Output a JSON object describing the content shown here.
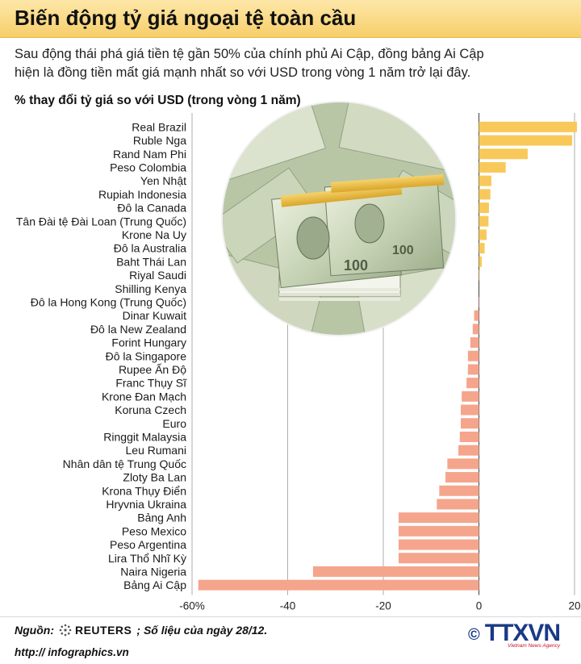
{
  "header": {
    "title": "Biến động tỷ giá ngoại tệ toàn cầu"
  },
  "intro": {
    "line1": "Sau động thái phá giá tiền tệ gần 50% của chính phủ Ai Cập, đồng bảng Ai Cập",
    "line2": "hiện là đồng tiền mất giá mạnh nhất so với USD trong vòng 1 năm trở lại đây."
  },
  "chart_data": {
    "type": "bar",
    "orientation": "horizontal",
    "title": "% thay đổi tỷ giá so với USD (trong vòng 1 năm)",
    "xlim": [
      -60,
      20
    ],
    "x_ticks": [
      "-60%",
      "-40",
      "-20",
      "0",
      "20"
    ],
    "x_tick_values": [
      -60,
      -40,
      -20,
      0,
      20
    ],
    "grid": true,
    "colors": {
      "positive": "#f8c95a",
      "negative": "#f5a58c"
    },
    "categories": [
      "Real Brazil",
      "Ruble Nga",
      "Rand Nam Phi",
      "Peso Colombia",
      "Yen Nhật",
      "Rupiah Indonesia",
      "Đô la Canada",
      "Tân Đài tệ Đài Loan (Trung Quốc)",
      "Krone Na Uy",
      "Đô la Australia",
      "Baht Thái Lan",
      "Riyal Saudi",
      "Shilling Kenya",
      "Đô la Hong Kong (Trung Quốc)",
      "Dinar Kuwait",
      "Đô la New Zealand",
      "Forint Hungary",
      "Đô la Singapore",
      "Rupee Ấn Độ",
      "Franc Thụy Sĩ",
      "Krone Đan Mạch",
      "Koruna Czech",
      "Euro",
      "Ringgit Malaysia",
      "Leu Rumani",
      "Nhân dân tệ Trung Quốc",
      "Zloty Ba Lan",
      "Krona Thụy Điển",
      "Hryvnia Ukraina",
      "Bảng Anh",
      "Peso Mexico",
      "Peso Argentina",
      "Lira Thổ Nhĩ Kỳ",
      "Naira Nigeria",
      "Bảng Ai Cập"
    ],
    "values": [
      20.5,
      19.5,
      10.2,
      5.6,
      2.6,
      2.4,
      2.1,
      2.0,
      1.6,
      1.2,
      0.6,
      0.1,
      0.0,
      -0.1,
      -1.0,
      -1.3,
      -1.8,
      -2.3,
      -2.3,
      -2.6,
      -3.6,
      -3.8,
      -3.8,
      -4.0,
      -4.3,
      -6.6,
      -7.0,
      -8.3,
      -8.8,
      -16.8,
      -16.8,
      -16.8,
      -16.8,
      -34.7,
      -58.7
    ]
  },
  "footer": {
    "source_label": "Nguồn:",
    "source_agency": "REUTERS",
    "source_note": "; Số liệu của ngày 28/12.",
    "url": "http:// infographics.vn",
    "copyright": "©",
    "brand": "TTXVN",
    "brand_tagline": "Vietnam News Agency"
  }
}
